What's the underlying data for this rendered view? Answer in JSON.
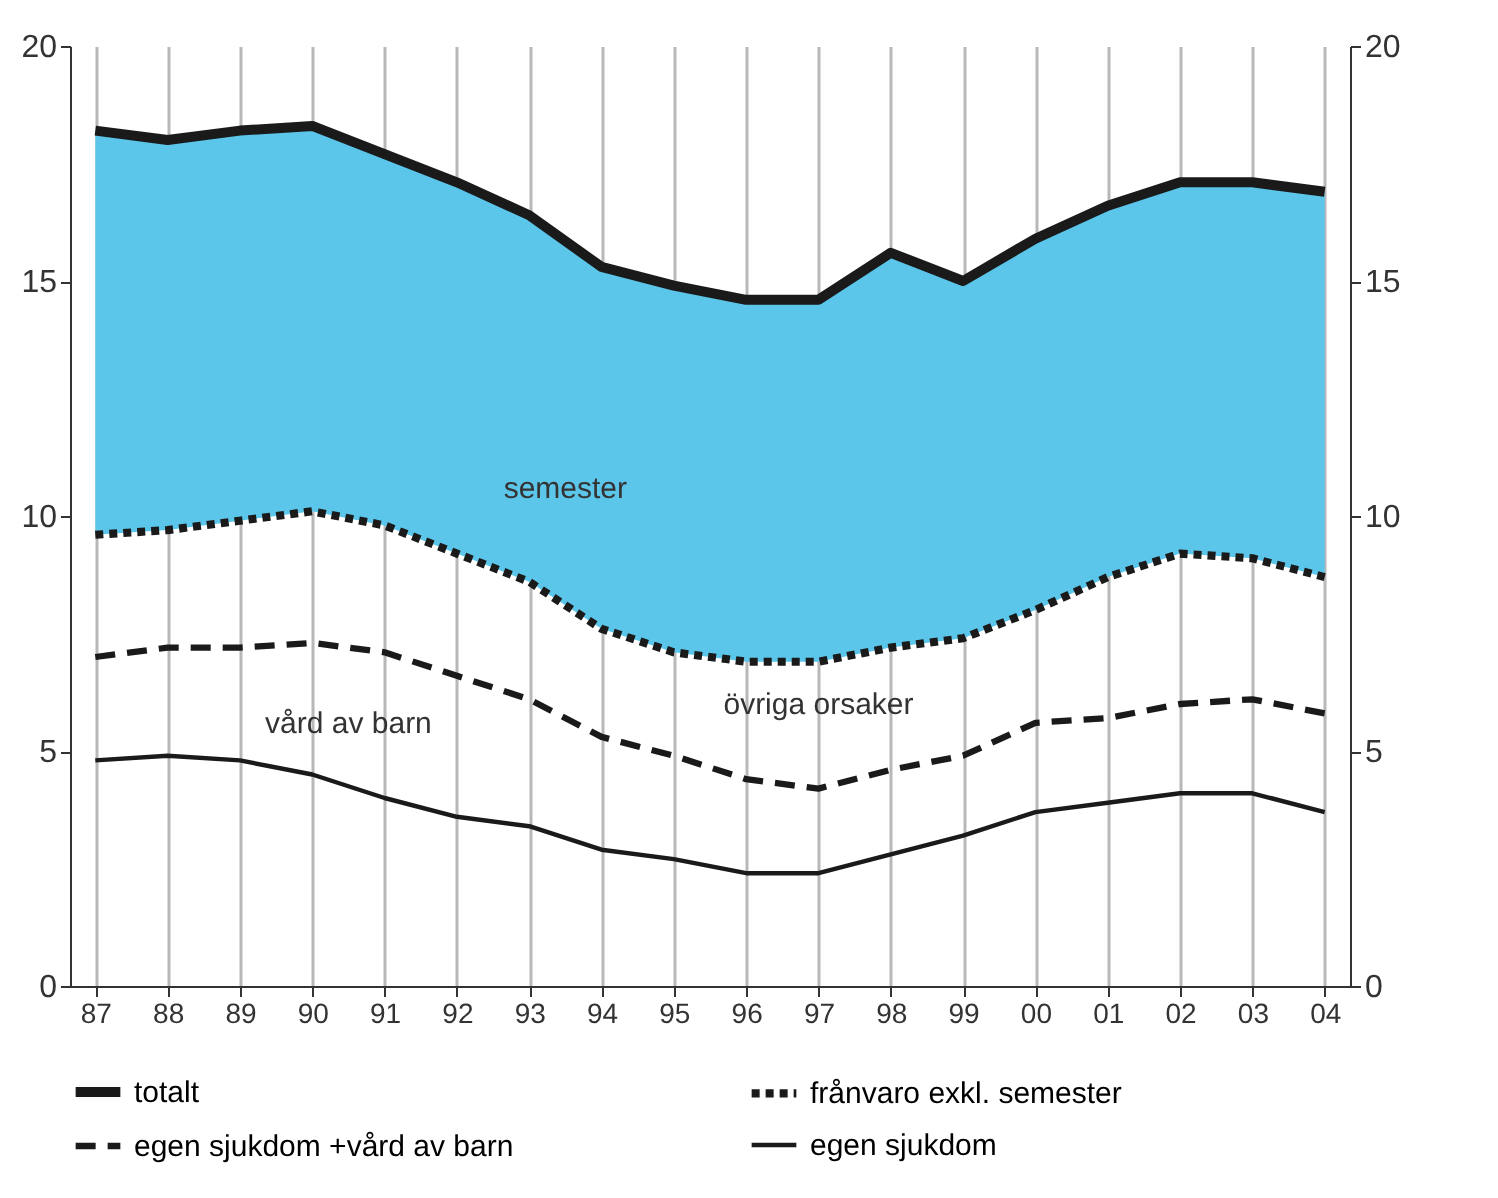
{
  "chart_data": {
    "type": "line",
    "categories": [
      "87",
      "88",
      "89",
      "90",
      "91",
      "92",
      "93",
      "94",
      "95",
      "96",
      "97",
      "98",
      "99",
      "00",
      "01",
      "02",
      "03",
      "04"
    ],
    "series": [
      {
        "name": "totalt",
        "color": "#1a1a1a",
        "line_style": "solid",
        "values": [
          18.2,
          18.0,
          18.2,
          18.3,
          17.7,
          17.1,
          16.4,
          15.3,
          14.9,
          14.6,
          14.6,
          15.6,
          15.0,
          15.9,
          16.6,
          17.1,
          17.1,
          16.9
        ],
        "lower": [
          9.6,
          9.7,
          9.9,
          10.1,
          9.8,
          9.2,
          8.6,
          7.6,
          7.1,
          6.9,
          6.9,
          7.2,
          7.4,
          8.0,
          8.7,
          9.2,
          9.1,
          8.7
        ],
        "upper": [
          18.2,
          18.0,
          18.2,
          18.3,
          17.7,
          17.1,
          16.4,
          15.3,
          14.9,
          14.6,
          14.6,
          15.6,
          15.0,
          15.9,
          16.6,
          17.1,
          17.1,
          16.9
        ]
      },
      {
        "name": "frånvaro exkl. semester",
        "color": "#1a1a1a",
        "line_style": "dotted",
        "values": [
          9.6,
          9.7,
          9.9,
          10.1,
          9.8,
          9.2,
          8.6,
          7.6,
          7.1,
          6.9,
          6.9,
          7.2,
          7.4,
          8.0,
          8.7,
          9.2,
          9.1,
          8.7
        ]
      },
      {
        "name": "egen sjukdom +vård av barn",
        "color": "#1a1a1a",
        "line_style": "dashed",
        "values": [
          7.0,
          7.2,
          7.2,
          7.3,
          7.1,
          6.6,
          6.1,
          5.3,
          4.9,
          4.4,
          4.2,
          4.6,
          4.9,
          5.6,
          5.7,
          6.0,
          6.1,
          5.8
        ]
      },
      {
        "name": "egen sjukdom",
        "color": "#1a1a1a",
        "line_style": "solid",
        "values": [
          4.8,
          4.9,
          4.8,
          4.5,
          4.0,
          3.6,
          3.4,
          2.9,
          2.7,
          2.4,
          2.4,
          2.8,
          3.2,
          3.7,
          3.9,
          4.1,
          4.1,
          3.7
        ]
      }
    ],
    "ylim": [
      0,
      20
    ],
    "yticks": [
      0,
      5,
      10,
      15,
      20
    ],
    "y2lim": [
      0,
      20
    ],
    "y2ticks": [
      0,
      5,
      10,
      15,
      20
    ],
    "grid": "x",
    "legend": "bottom",
    "annotations": [
      "semester",
      "vård av barn",
      "övriga orsaker"
    ]
  }
}
